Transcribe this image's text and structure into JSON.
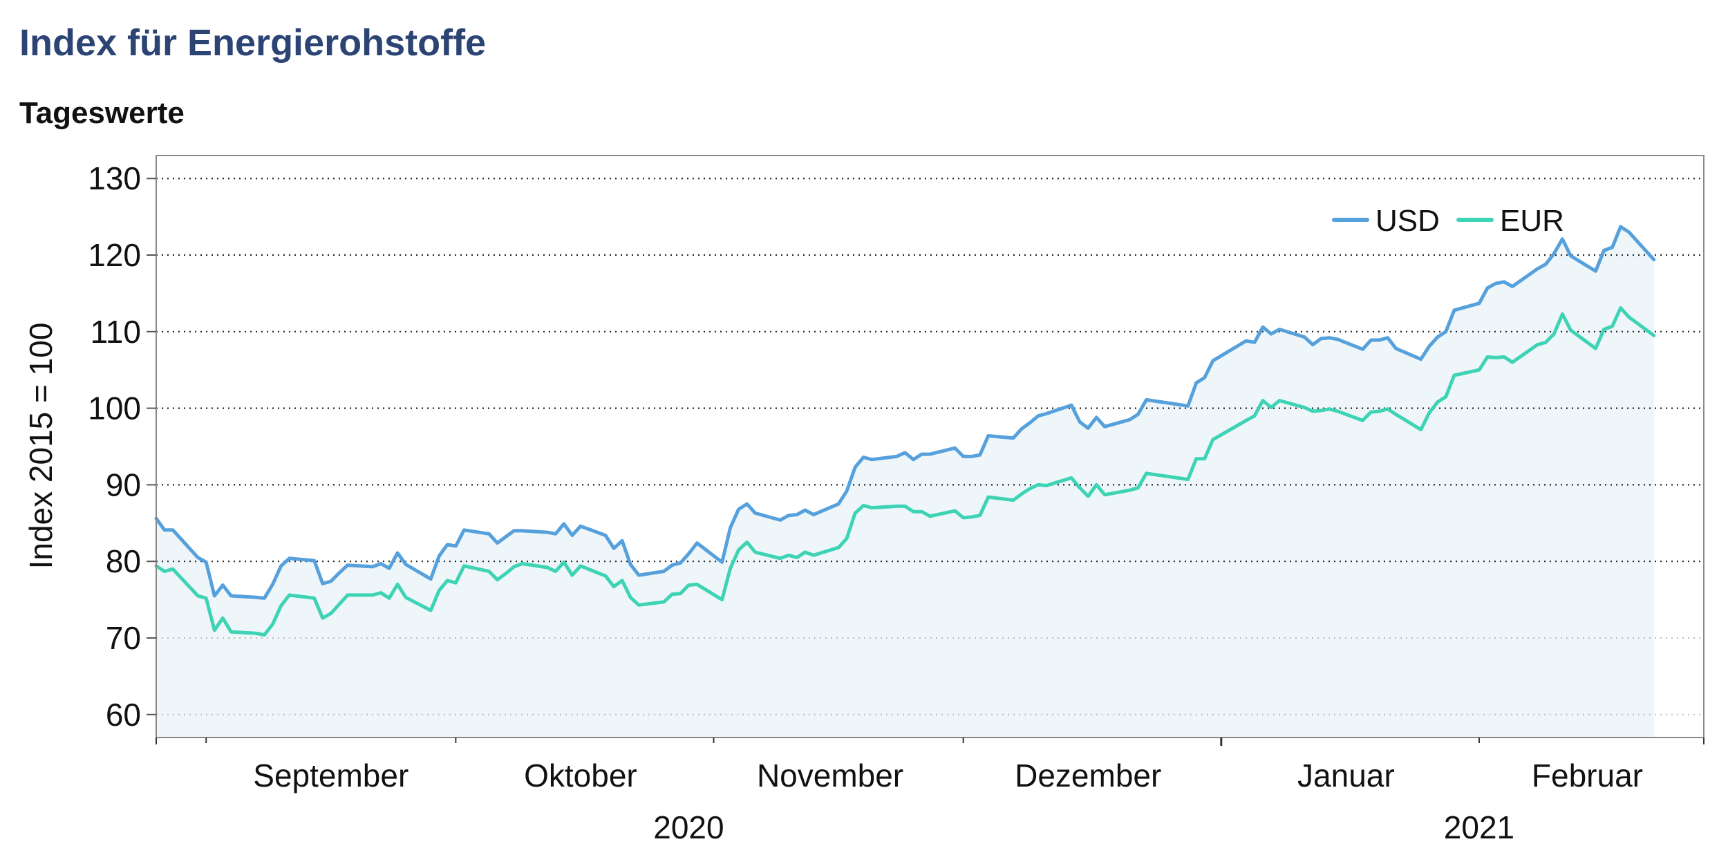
{
  "title": "Index für Energierohstoffe",
  "subtitle": "Tageswerte",
  "colors": {
    "title": "#2b4474",
    "usd": "#56a0dc",
    "eur": "#3ed3b4",
    "area": "#eef6fa",
    "gridline": "#222222",
    "frame": "#888888"
  },
  "chart_data": {
    "type": "line",
    "title": "Index für Energierohstoffe",
    "subtitle": "Tageswerte",
    "ylabel": "Index 2015 = 100",
    "xlabel": "",
    "ylim": [
      57,
      133
    ],
    "yticks": [
      60,
      70,
      80,
      90,
      100,
      110,
      120,
      130
    ],
    "grid": "horizontal dotted",
    "legend": "top-right",
    "x_range": [
      "2020-08-26",
      "2021-02-28"
    ],
    "month_labels": [
      {
        "label": "September",
        "date": "2020-09-16"
      },
      {
        "label": "Oktober",
        "date": "2020-10-16"
      },
      {
        "label": "November",
        "date": "2020-11-15"
      },
      {
        "label": "Dezember",
        "date": "2020-12-16"
      },
      {
        "label": "Januar",
        "date": "2021-01-16"
      },
      {
        "label": "Februar",
        "date": "2021-02-14"
      }
    ],
    "year_labels": [
      {
        "label": "2020",
        "date": "2020-10-29"
      },
      {
        "label": "2021",
        "date": "2021-02-01"
      }
    ],
    "month_boundaries": [
      "2020-09-01",
      "2020-10-01",
      "2020-11-01",
      "2020-12-01",
      "2021-01-01",
      "2021-02-01"
    ],
    "series": [
      {
        "name": "USD",
        "color": "#56a0dc",
        "points": [
          [
            "2020-08-26",
            85.6
          ],
          [
            "2020-08-27",
            84.1
          ],
          [
            "2020-08-28",
            84.1
          ],
          [
            "2020-08-31",
            80.5
          ],
          [
            "2020-09-01",
            79.9
          ],
          [
            "2020-09-02",
            75.5
          ],
          [
            "2020-09-03",
            76.9
          ],
          [
            "2020-09-04",
            75.5
          ],
          [
            "2020-09-07",
            75.3
          ],
          [
            "2020-09-08",
            75.2
          ],
          [
            "2020-09-09",
            77.0
          ],
          [
            "2020-09-10",
            79.4
          ],
          [
            "2020-09-11",
            80.4
          ],
          [
            "2020-09-14",
            80.1
          ],
          [
            "2020-09-15",
            77.1
          ],
          [
            "2020-09-16",
            77.4
          ],
          [
            "2020-09-17",
            78.5
          ],
          [
            "2020-09-18",
            79.5
          ],
          [
            "2020-09-21",
            79.3
          ],
          [
            "2020-09-22",
            79.7
          ],
          [
            "2020-09-23",
            79.1
          ],
          [
            "2020-09-24",
            81.1
          ],
          [
            "2020-09-25",
            79.6
          ],
          [
            "2020-09-28",
            77.7
          ],
          [
            "2020-09-29",
            80.7
          ],
          [
            "2020-09-30",
            82.2
          ],
          [
            "2020-10-01",
            82.0
          ],
          [
            "2020-10-02",
            84.1
          ],
          [
            "2020-10-05",
            83.6
          ],
          [
            "2020-10-06",
            82.4
          ],
          [
            "2020-10-07",
            83.2
          ],
          [
            "2020-10-08",
            84.0
          ],
          [
            "2020-10-09",
            84.0
          ],
          [
            "2020-10-12",
            83.8
          ],
          [
            "2020-10-13",
            83.6
          ],
          [
            "2020-10-14",
            84.9
          ],
          [
            "2020-10-15",
            83.4
          ],
          [
            "2020-10-16",
            84.6
          ],
          [
            "2020-10-19",
            83.4
          ],
          [
            "2020-10-20",
            81.7
          ],
          [
            "2020-10-21",
            82.7
          ],
          [
            "2020-10-22",
            79.6
          ],
          [
            "2020-10-23",
            78.2
          ],
          [
            "2020-10-26",
            78.7
          ],
          [
            "2020-10-27",
            79.5
          ],
          [
            "2020-10-28",
            79.8
          ],
          [
            "2020-10-29",
            81.0
          ],
          [
            "2020-10-30",
            82.4
          ],
          [
            "2020-11-02",
            79.9
          ],
          [
            "2020-11-03",
            84.4
          ],
          [
            "2020-11-04",
            86.8
          ],
          [
            "2020-11-05",
            87.5
          ],
          [
            "2020-11-06",
            86.3
          ],
          [
            "2020-11-09",
            85.4
          ],
          [
            "2020-11-10",
            86.0
          ],
          [
            "2020-11-11",
            86.1
          ],
          [
            "2020-11-12",
            86.7
          ],
          [
            "2020-11-13",
            86.1
          ],
          [
            "2020-11-16",
            87.5
          ],
          [
            "2020-11-17",
            89.2
          ],
          [
            "2020-11-18",
            92.3
          ],
          [
            "2020-11-19",
            93.6
          ],
          [
            "2020-11-20",
            93.3
          ],
          [
            "2020-11-23",
            93.7
          ],
          [
            "2020-11-24",
            94.2
          ],
          [
            "2020-11-25",
            93.3
          ],
          [
            "2020-11-26",
            94.0
          ],
          [
            "2020-11-27",
            94.0
          ],
          [
            "2020-11-30",
            94.8
          ],
          [
            "2020-12-01",
            93.7
          ],
          [
            "2020-12-02",
            93.7
          ],
          [
            "2020-12-03",
            93.9
          ],
          [
            "2020-12-04",
            96.4
          ],
          [
            "2020-12-07",
            96.1
          ],
          [
            "2020-12-08",
            97.3
          ],
          [
            "2020-12-09",
            98.1
          ],
          [
            "2020-12-10",
            99.0
          ],
          [
            "2020-12-11",
            99.3
          ],
          [
            "2020-12-14",
            100.4
          ],
          [
            "2020-12-15",
            98.2
          ],
          [
            "2020-12-16",
            97.4
          ],
          [
            "2020-12-17",
            98.8
          ],
          [
            "2020-12-18",
            97.6
          ],
          [
            "2020-12-21",
            98.5
          ],
          [
            "2020-12-22",
            99.2
          ],
          [
            "2020-12-23",
            101.1
          ],
          [
            "2020-12-28",
            100.3
          ],
          [
            "2020-12-29",
            103.3
          ],
          [
            "2020-12-30",
            104.0
          ],
          [
            "2020-12-31",
            106.2
          ],
          [
            "2021-01-04",
            108.8
          ],
          [
            "2021-01-05",
            108.6
          ],
          [
            "2021-01-06",
            110.6
          ],
          [
            "2021-01-07",
            109.7
          ],
          [
            "2021-01-08",
            110.3
          ],
          [
            "2021-01-11",
            109.3
          ],
          [
            "2021-01-12",
            108.3
          ],
          [
            "2021-01-13",
            109.1
          ],
          [
            "2021-01-14",
            109.2
          ],
          [
            "2021-01-15",
            109.0
          ],
          [
            "2021-01-18",
            107.7
          ],
          [
            "2021-01-19",
            108.9
          ],
          [
            "2021-01-20",
            108.9
          ],
          [
            "2021-01-21",
            109.2
          ],
          [
            "2021-01-22",
            107.8
          ],
          [
            "2021-01-25",
            106.4
          ],
          [
            "2021-01-26",
            108.1
          ],
          [
            "2021-01-27",
            109.3
          ],
          [
            "2021-01-28",
            110.0
          ],
          [
            "2021-01-29",
            112.8
          ],
          [
            "2021-02-01",
            113.7
          ],
          [
            "2021-02-02",
            115.7
          ],
          [
            "2021-02-03",
            116.3
          ],
          [
            "2021-02-04",
            116.5
          ],
          [
            "2021-02-05",
            115.9
          ],
          [
            "2021-02-08",
            118.2
          ],
          [
            "2021-02-09",
            118.8
          ],
          [
            "2021-02-10",
            120.2
          ],
          [
            "2021-02-11",
            122.1
          ],
          [
            "2021-02-12",
            119.9
          ],
          [
            "2021-02-15",
            117.9
          ],
          [
            "2021-02-16",
            120.6
          ],
          [
            "2021-02-17",
            121.0
          ],
          [
            "2021-02-18",
            123.7
          ],
          [
            "2021-02-19",
            123.0
          ],
          [
            "2021-02-22",
            119.4
          ]
        ]
      },
      {
        "name": "EUR",
        "color": "#3ed3b4",
        "points": [
          [
            "2020-08-26",
            79.4
          ],
          [
            "2020-08-27",
            78.7
          ],
          [
            "2020-08-28",
            79.0
          ],
          [
            "2020-08-31",
            75.5
          ],
          [
            "2020-09-01",
            75.2
          ],
          [
            "2020-09-02",
            71.0
          ],
          [
            "2020-09-03",
            72.6
          ],
          [
            "2020-09-04",
            70.8
          ],
          [
            "2020-09-07",
            70.6
          ],
          [
            "2020-09-08",
            70.4
          ],
          [
            "2020-09-09",
            71.8
          ],
          [
            "2020-09-10",
            74.2
          ],
          [
            "2020-09-11",
            75.6
          ],
          [
            "2020-09-14",
            75.2
          ],
          [
            "2020-09-15",
            72.6
          ],
          [
            "2020-09-16",
            73.2
          ],
          [
            "2020-09-17",
            74.4
          ],
          [
            "2020-09-18",
            75.6
          ],
          [
            "2020-09-21",
            75.6
          ],
          [
            "2020-09-22",
            75.9
          ],
          [
            "2020-09-23",
            75.2
          ],
          [
            "2020-09-24",
            77.0
          ],
          [
            "2020-09-25",
            75.3
          ],
          [
            "2020-09-28",
            73.6
          ],
          [
            "2020-09-29",
            76.2
          ],
          [
            "2020-09-30",
            77.5
          ],
          [
            "2020-10-01",
            77.2
          ],
          [
            "2020-10-02",
            79.4
          ],
          [
            "2020-10-05",
            78.7
          ],
          [
            "2020-10-06",
            77.6
          ],
          [
            "2020-10-07",
            78.4
          ],
          [
            "2020-10-08",
            79.3
          ],
          [
            "2020-10-09",
            79.7
          ],
          [
            "2020-10-12",
            79.2
          ],
          [
            "2020-10-13",
            78.7
          ],
          [
            "2020-10-14",
            79.9
          ],
          [
            "2020-10-15",
            78.2
          ],
          [
            "2020-10-16",
            79.4
          ],
          [
            "2020-10-19",
            78.1
          ],
          [
            "2020-10-20",
            76.7
          ],
          [
            "2020-10-21",
            77.5
          ],
          [
            "2020-10-22",
            75.3
          ],
          [
            "2020-10-23",
            74.3
          ],
          [
            "2020-10-26",
            74.7
          ],
          [
            "2020-10-27",
            75.7
          ],
          [
            "2020-10-28",
            75.8
          ],
          [
            "2020-10-29",
            76.9
          ],
          [
            "2020-10-30",
            77.0
          ],
          [
            "2020-11-02",
            75.0
          ],
          [
            "2020-11-03",
            79.1
          ],
          [
            "2020-11-04",
            81.5
          ],
          [
            "2020-11-05",
            82.5
          ],
          [
            "2020-11-06",
            81.2
          ],
          [
            "2020-11-09",
            80.4
          ],
          [
            "2020-11-10",
            80.8
          ],
          [
            "2020-11-11",
            80.5
          ],
          [
            "2020-11-12",
            81.2
          ],
          [
            "2020-11-13",
            80.8
          ],
          [
            "2020-11-16",
            81.8
          ],
          [
            "2020-11-17",
            83.0
          ],
          [
            "2020-11-18",
            86.3
          ],
          [
            "2020-11-19",
            87.3
          ],
          [
            "2020-11-20",
            87.0
          ],
          [
            "2020-11-23",
            87.2
          ],
          [
            "2020-11-24",
            87.2
          ],
          [
            "2020-11-25",
            86.5
          ],
          [
            "2020-11-26",
            86.5
          ],
          [
            "2020-11-27",
            85.9
          ],
          [
            "2020-11-30",
            86.6
          ],
          [
            "2020-12-01",
            85.7
          ],
          [
            "2020-12-02",
            85.8
          ],
          [
            "2020-12-03",
            86.0
          ],
          [
            "2020-12-04",
            88.4
          ],
          [
            "2020-12-07",
            88.0
          ],
          [
            "2020-12-08",
            88.8
          ],
          [
            "2020-12-09",
            89.5
          ],
          [
            "2020-12-10",
            90.0
          ],
          [
            "2020-12-11",
            89.9
          ],
          [
            "2020-12-14",
            90.9
          ],
          [
            "2020-12-15",
            89.6
          ],
          [
            "2020-12-16",
            88.5
          ],
          [
            "2020-12-17",
            90.0
          ],
          [
            "2020-12-18",
            88.7
          ],
          [
            "2020-12-21",
            89.3
          ],
          [
            "2020-12-22",
            89.6
          ],
          [
            "2020-12-23",
            91.5
          ],
          [
            "2020-12-28",
            90.7
          ],
          [
            "2020-12-29",
            93.4
          ],
          [
            "2020-12-30",
            93.4
          ],
          [
            "2020-12-31",
            95.9
          ],
          [
            "2021-01-04",
            98.4
          ],
          [
            "2021-01-05",
            99.0
          ],
          [
            "2021-01-06",
            101.0
          ],
          [
            "2021-01-07",
            100.1
          ],
          [
            "2021-01-08",
            101.0
          ],
          [
            "2021-01-11",
            100.1
          ],
          [
            "2021-01-12",
            99.6
          ],
          [
            "2021-01-13",
            99.7
          ],
          [
            "2021-01-14",
            99.9
          ],
          [
            "2021-01-15",
            99.6
          ],
          [
            "2021-01-18",
            98.4
          ],
          [
            "2021-01-19",
            99.5
          ],
          [
            "2021-01-20",
            99.6
          ],
          [
            "2021-01-21",
            99.9
          ],
          [
            "2021-01-22",
            99.2
          ],
          [
            "2021-01-25",
            97.2
          ],
          [
            "2021-01-26",
            99.4
          ],
          [
            "2021-01-27",
            100.8
          ],
          [
            "2021-01-28",
            101.5
          ],
          [
            "2021-01-29",
            104.3
          ],
          [
            "2021-02-01",
            105.0
          ],
          [
            "2021-02-02",
            106.7
          ],
          [
            "2021-02-03",
            106.6
          ],
          [
            "2021-02-04",
            106.7
          ],
          [
            "2021-02-05",
            106.0
          ],
          [
            "2021-02-08",
            108.3
          ],
          [
            "2021-02-09",
            108.6
          ],
          [
            "2021-02-10",
            109.7
          ],
          [
            "2021-02-11",
            112.3
          ],
          [
            "2021-02-12",
            110.2
          ],
          [
            "2021-02-15",
            107.8
          ],
          [
            "2021-02-16",
            110.3
          ],
          [
            "2021-02-17",
            110.7
          ],
          [
            "2021-02-18",
            113.1
          ],
          [
            "2021-02-19",
            111.9
          ],
          [
            "2021-02-22",
            109.5
          ]
        ]
      }
    ]
  }
}
